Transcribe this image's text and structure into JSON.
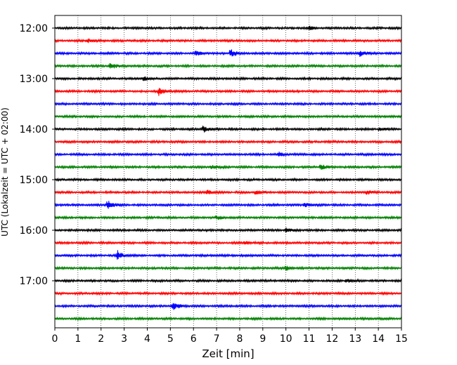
{
  "chart_data": {
    "type": "line",
    "xlabel": "Zeit  [min]",
    "ylabel": "UTC (Lokalzeit = UTC + 02:00)",
    "xlim": [
      0,
      15
    ],
    "x_ticks": [
      0,
      1,
      2,
      3,
      4,
      5,
      6,
      7,
      8,
      9,
      10,
      11,
      12,
      13,
      14,
      15
    ],
    "y_ticks": [
      "12:00",
      "13:00",
      "14:00",
      "15:00",
      "16:00",
      "17:00"
    ],
    "x_grid": true,
    "colors": [
      "#000000",
      "#ff0000",
      "#0000ff",
      "#008000"
    ],
    "series": [
      {
        "start": "12:00",
        "color": "#000000",
        "events": [
          [
            11.0,
            0.3
          ]
        ]
      },
      {
        "start": "12:15",
        "color": "#ff0000",
        "events": [
          [
            1.4,
            0.35
          ]
        ]
      },
      {
        "start": "12:30",
        "color": "#0000ff",
        "events": [
          [
            6.1,
            0.4
          ],
          [
            7.6,
            0.7
          ],
          [
            13.2,
            0.45
          ]
        ]
      },
      {
        "start": "12:45",
        "color": "#008000",
        "events": [
          [
            2.4,
            0.6
          ]
        ]
      },
      {
        "start": "13:00",
        "color": "#000000",
        "events": [
          [
            3.8,
            0.35
          ]
        ]
      },
      {
        "start": "13:15",
        "color": "#ff0000",
        "events": [
          [
            4.5,
            0.7
          ]
        ]
      },
      {
        "start": "13:30",
        "color": "#0000ff",
        "events": []
      },
      {
        "start": "13:45",
        "color": "#008000",
        "events": []
      },
      {
        "start": "14:00",
        "color": "#000000",
        "events": [
          [
            6.4,
            0.6
          ],
          [
            14.0,
            0.3
          ]
        ]
      },
      {
        "start": "14:15",
        "color": "#ff0000",
        "events": []
      },
      {
        "start": "14:30",
        "color": "#0000ff",
        "events": [
          [
            9.7,
            0.3
          ]
        ]
      },
      {
        "start": "14:45",
        "color": "#008000",
        "events": [
          [
            6.8,
            0.35
          ],
          [
            11.5,
            0.45
          ]
        ]
      },
      {
        "start": "15:00",
        "color": "#000000",
        "events": []
      },
      {
        "start": "15:15",
        "color": "#ff0000",
        "events": [
          [
            6.6,
            0.35
          ],
          [
            8.7,
            0.35
          ],
          [
            13.5,
            0.3
          ]
        ]
      },
      {
        "start": "15:30",
        "color": "#0000ff",
        "events": [
          [
            2.3,
            0.75
          ],
          [
            10.8,
            0.35
          ]
        ]
      },
      {
        "start": "15:45",
        "color": "#008000",
        "events": [
          [
            7.0,
            0.3
          ]
        ]
      },
      {
        "start": "16:00",
        "color": "#000000",
        "events": [
          [
            10.0,
            0.35
          ]
        ]
      },
      {
        "start": "16:15",
        "color": "#ff0000",
        "events": [
          [
            8.2,
            0.3
          ]
        ]
      },
      {
        "start": "16:30",
        "color": "#0000ff",
        "events": [
          [
            2.7,
            0.75
          ]
        ]
      },
      {
        "start": "16:45",
        "color": "#008000",
        "events": [
          [
            10.0,
            0.35
          ]
        ]
      },
      {
        "start": "17:00",
        "color": "#000000",
        "events": [
          [
            12.6,
            0.35
          ]
        ]
      },
      {
        "start": "17:15",
        "color": "#ff0000",
        "events": []
      },
      {
        "start": "17:30",
        "color": "#0000ff",
        "events": [
          [
            5.1,
            0.75
          ]
        ]
      },
      {
        "start": "17:45",
        "color": "#008000",
        "events": []
      }
    ]
  }
}
